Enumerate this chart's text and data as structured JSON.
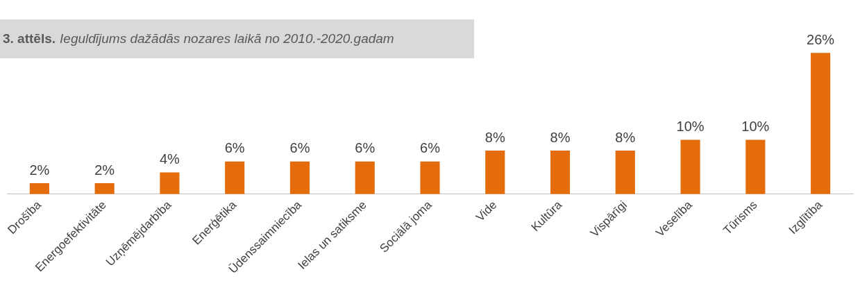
{
  "chart_data": {
    "type": "bar",
    "title": "3. attēls.",
    "subtitle": "Ieguldījums dažādās nozares laikā no 2010.-2020.gadam",
    "categories": [
      "Drošība",
      "Energoefektivitāte",
      "Uzņēmējdarbība",
      "Enerģētika",
      "Ūdenssaimniecība",
      "Ielas un satiksme",
      "Sociālā joma",
      "Vide",
      "Kultūra",
      "Vispārīgi",
      "Veselība",
      "Tūrisms",
      "Izglītība"
    ],
    "values": [
      2,
      2,
      4,
      6,
      6,
      6,
      6,
      8,
      8,
      8,
      10,
      10,
      26
    ],
    "value_labels": [
      "2%",
      "2%",
      "4%",
      "6%",
      "6%",
      "6%",
      "6%",
      "8%",
      "8%",
      "8%",
      "10%",
      "10%",
      "26%"
    ],
    "color": "#e46c0a",
    "grid": false,
    "legend": false
  }
}
